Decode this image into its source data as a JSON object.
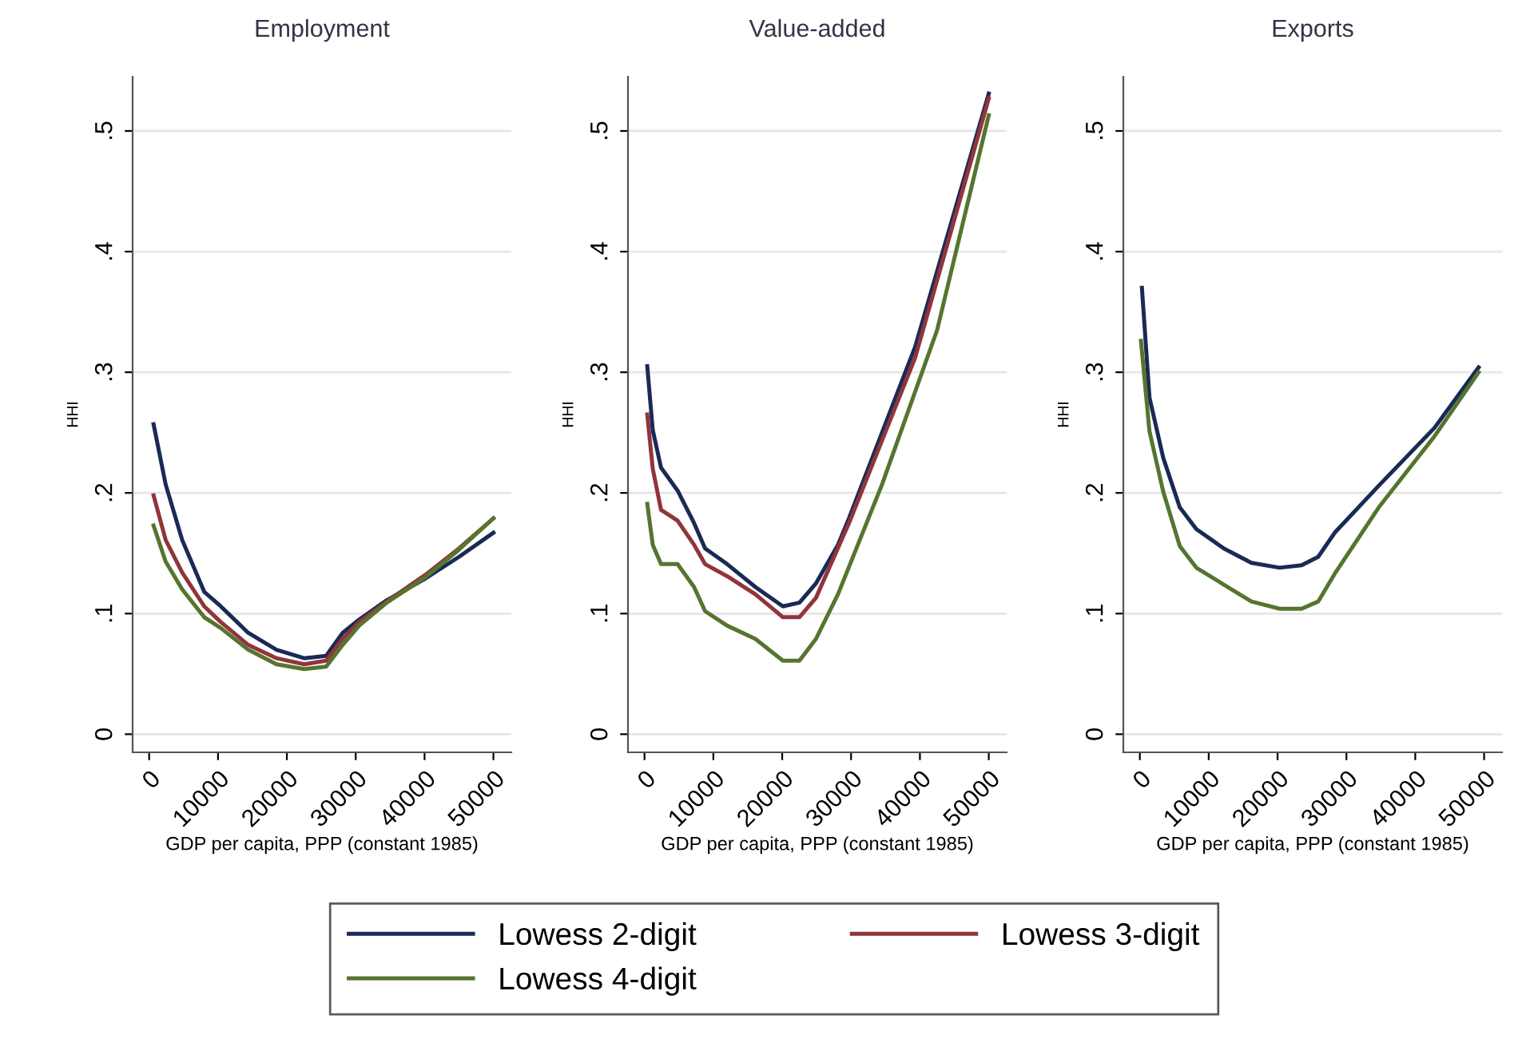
{
  "chart_data": [
    {
      "type": "line",
      "title": "Employment",
      "xlabel": "GDP per capita, PPP (constant 1985)",
      "ylabel": "HHI",
      "xlim": [
        -2400,
        52600
      ],
      "ylim": [
        -0.015,
        0.545
      ],
      "xticks": [
        0,
        10000,
        20000,
        30000,
        40000,
        50000
      ],
      "yticks": [
        {
          "value": 0,
          "label": "0"
        },
        {
          "value": 0.1,
          "label": ".1"
        },
        {
          "value": 0.2,
          "label": ".2"
        },
        {
          "value": 0.3,
          "label": ".3"
        },
        {
          "value": 0.4,
          "label": ".4"
        },
        {
          "value": 0.5,
          "label": ".5"
        }
      ],
      "grid": "y",
      "legend": "bottom",
      "marker": "none",
      "line_style": "solid",
      "series": [
        {
          "name": "Lowess 2-digit",
          "color": "#1a2a56",
          "x": [
            640,
            2400,
            4800,
            8000,
            10400,
            14400,
            18500,
            22500,
            25700,
            28100,
            30500,
            34500,
            40100,
            45000,
            50000
          ],
          "values": [
            0.257,
            0.207,
            0.161,
            0.118,
            0.106,
            0.084,
            0.07,
            0.063,
            0.065,
            0.084,
            0.095,
            0.111,
            0.129,
            0.147,
            0.167
          ]
        },
        {
          "name": "Lowess 3-digit",
          "color": "#90353b",
          "x": [
            640,
            2400,
            4800,
            8000,
            10400,
            14400,
            18500,
            22500,
            25700,
            28100,
            30500,
            34500,
            40100,
            45000,
            50000
          ],
          "values": [
            0.198,
            0.161,
            0.134,
            0.106,
            0.093,
            0.074,
            0.063,
            0.058,
            0.061,
            0.079,
            0.093,
            0.11,
            0.132,
            0.154,
            0.179
          ]
        },
        {
          "name": "Lowess 4-digit",
          "color": "#55752f",
          "x": [
            640,
            2400,
            4800,
            8000,
            10400,
            14400,
            18500,
            22500,
            25700,
            28100,
            30500,
            34500,
            40100,
            45000,
            50000
          ],
          "values": [
            0.173,
            0.143,
            0.12,
            0.097,
            0.088,
            0.07,
            0.058,
            0.054,
            0.056,
            0.074,
            0.09,
            0.109,
            0.13,
            0.153,
            0.179
          ]
        }
      ]
    },
    {
      "type": "line",
      "title": "Value-added",
      "xlabel": "GDP per capita, PPP (constant 1985)",
      "ylabel": "HHI",
      "xlim": [
        -2400,
        52600
      ],
      "ylim": [
        -0.015,
        0.545
      ],
      "xticks": [
        0,
        10000,
        20000,
        30000,
        40000,
        50000
      ],
      "yticks": [
        {
          "value": 0,
          "label": "0"
        },
        {
          "value": 0.1,
          "label": ".1"
        },
        {
          "value": 0.2,
          "label": ".2"
        },
        {
          "value": 0.3,
          "label": ".3"
        },
        {
          "value": 0.4,
          "label": ".4"
        },
        {
          "value": 0.5,
          "label": ".5"
        }
      ],
      "grid": "y",
      "marker": "none",
      "line_style": "solid",
      "series": [
        {
          "name": "Lowess 2-digit",
          "color": "#1a2a56",
          "x": [
            400,
            1200,
            2400,
            4800,
            7200,
            8800,
            12000,
            16100,
            20100,
            22500,
            24900,
            28100,
            29700,
            39300,
            50000
          ],
          "values": [
            0.305,
            0.252,
            0.221,
            0.202,
            0.175,
            0.154,
            0.141,
            0.122,
            0.106,
            0.109,
            0.125,
            0.157,
            0.179,
            0.321,
            0.531
          ]
        },
        {
          "name": "Lowess 3-digit",
          "color": "#90353b",
          "x": [
            400,
            1200,
            2400,
            4800,
            7200,
            8800,
            12000,
            16100,
            20100,
            22500,
            24900,
            29700,
            39300,
            50000
          ],
          "values": [
            0.265,
            0.22,
            0.186,
            0.177,
            0.157,
            0.141,
            0.131,
            0.116,
            0.097,
            0.097,
            0.113,
            0.175,
            0.312,
            0.527
          ]
        },
        {
          "name": "Lowess 4-digit",
          "color": "#55752f",
          "x": [
            400,
            1200,
            2400,
            4800,
            7200,
            8800,
            12000,
            16100,
            20100,
            22500,
            24900,
            28100,
            34500,
            42500,
            50000
          ],
          "values": [
            0.191,
            0.157,
            0.141,
            0.141,
            0.122,
            0.102,
            0.09,
            0.079,
            0.061,
            0.061,
            0.079,
            0.116,
            0.207,
            0.335,
            0.513
          ]
        }
      ]
    },
    {
      "type": "line",
      "title": "Exports",
      "xlabel": "GDP per capita, PPP (constant 1985)",
      "ylabel": "HHI",
      "xlim": [
        -2400,
        52600
      ],
      "ylim": [
        -0.015,
        0.545
      ],
      "xticks": [
        0,
        10000,
        20000,
        30000,
        40000,
        50000
      ],
      "yticks": [
        {
          "value": 0,
          "label": "0"
        },
        {
          "value": 0.1,
          "label": ".1"
        },
        {
          "value": 0.2,
          "label": ".2"
        },
        {
          "value": 0.3,
          "label": ".3"
        },
        {
          "value": 0.4,
          "label": ".4"
        },
        {
          "value": 0.5,
          "label": ".5"
        }
      ],
      "grid": "y",
      "marker": "none",
      "line_style": "solid",
      "series": [
        {
          "name": "Lowess 2-digit",
          "color": "#1a2a56",
          "x": [
            300,
            1400,
            3400,
            5800,
            8200,
            12200,
            16200,
            20300,
            23500,
            25900,
            28300,
            34700,
            42800,
            49200
          ],
          "values": [
            0.37,
            0.279,
            0.229,
            0.188,
            0.17,
            0.154,
            0.142,
            0.138,
            0.14,
            0.147,
            0.167,
            0.206,
            0.254,
            0.304
          ]
        },
        {
          "name": "Lowess 4-digit",
          "color": "#55752f",
          "x": [
            160,
            1400,
            3400,
            5800,
            8200,
            12200,
            16200,
            20300,
            23500,
            25900,
            28300,
            34700,
            42800,
            49200
          ],
          "values": [
            0.326,
            0.251,
            0.201,
            0.156,
            0.138,
            0.124,
            0.11,
            0.104,
            0.104,
            0.11,
            0.133,
            0.188,
            0.247,
            0.3
          ]
        }
      ]
    }
  ]
}
